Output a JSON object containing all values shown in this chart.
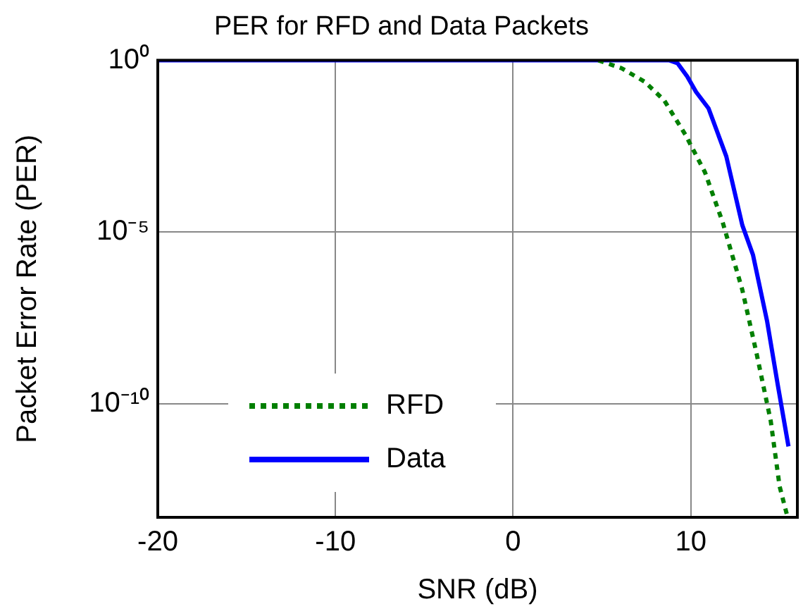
{
  "chart_data": {
    "type": "line",
    "title": "PER for RFD and Data Packets",
    "xlabel": "SNR (dB)",
    "ylabel": "Packet Error Rate (PER)",
    "log": "y",
    "grid": true,
    "legend": "bottom left",
    "marker": "none",
    "xlim": [
      -20,
      16
    ],
    "xticks": [
      -20,
      -10,
      0,
      10
    ],
    "ylim": [
      5e-14,
      1
    ],
    "yticks": [
      {
        "value": 1,
        "label": "10⁰"
      },
      {
        "value": 1e-05,
        "label": "10⁻⁵"
      },
      {
        "value": 1e-10,
        "label": "10⁻¹⁰"
      }
    ],
    "series": [
      {
        "name": "RFD",
        "color": "#007f00",
        "line_style": "dotted",
        "x": [
          4.8,
          6.1,
          7.4,
          8.5,
          9.7,
          10.8,
          11.8,
          12.9,
          13.7,
          14.5,
          15,
          15.4
        ],
        "values": [
          1,
          0.59,
          0.24,
          0.069,
          0.0068,
          0.00055,
          1.9e-05,
          2.1e-07,
          3e-09,
          3.2e-11,
          4e-13,
          6.3e-14
        ]
      },
      {
        "name": "Data",
        "color": "#0000ff",
        "line_style": "solid",
        "x": [
          -20,
          8.8,
          9.25,
          9.8,
          10.3,
          11,
          12,
          12.9,
          13.5,
          14.3,
          14.9,
          15.5
        ],
        "values": [
          1,
          1,
          0.83,
          0.34,
          0.12,
          0.04,
          0.0016,
          1.6e-05,
          2.2e-06,
          2.5e-08,
          3.5e-10,
          5.8e-12
        ]
      }
    ]
  }
}
